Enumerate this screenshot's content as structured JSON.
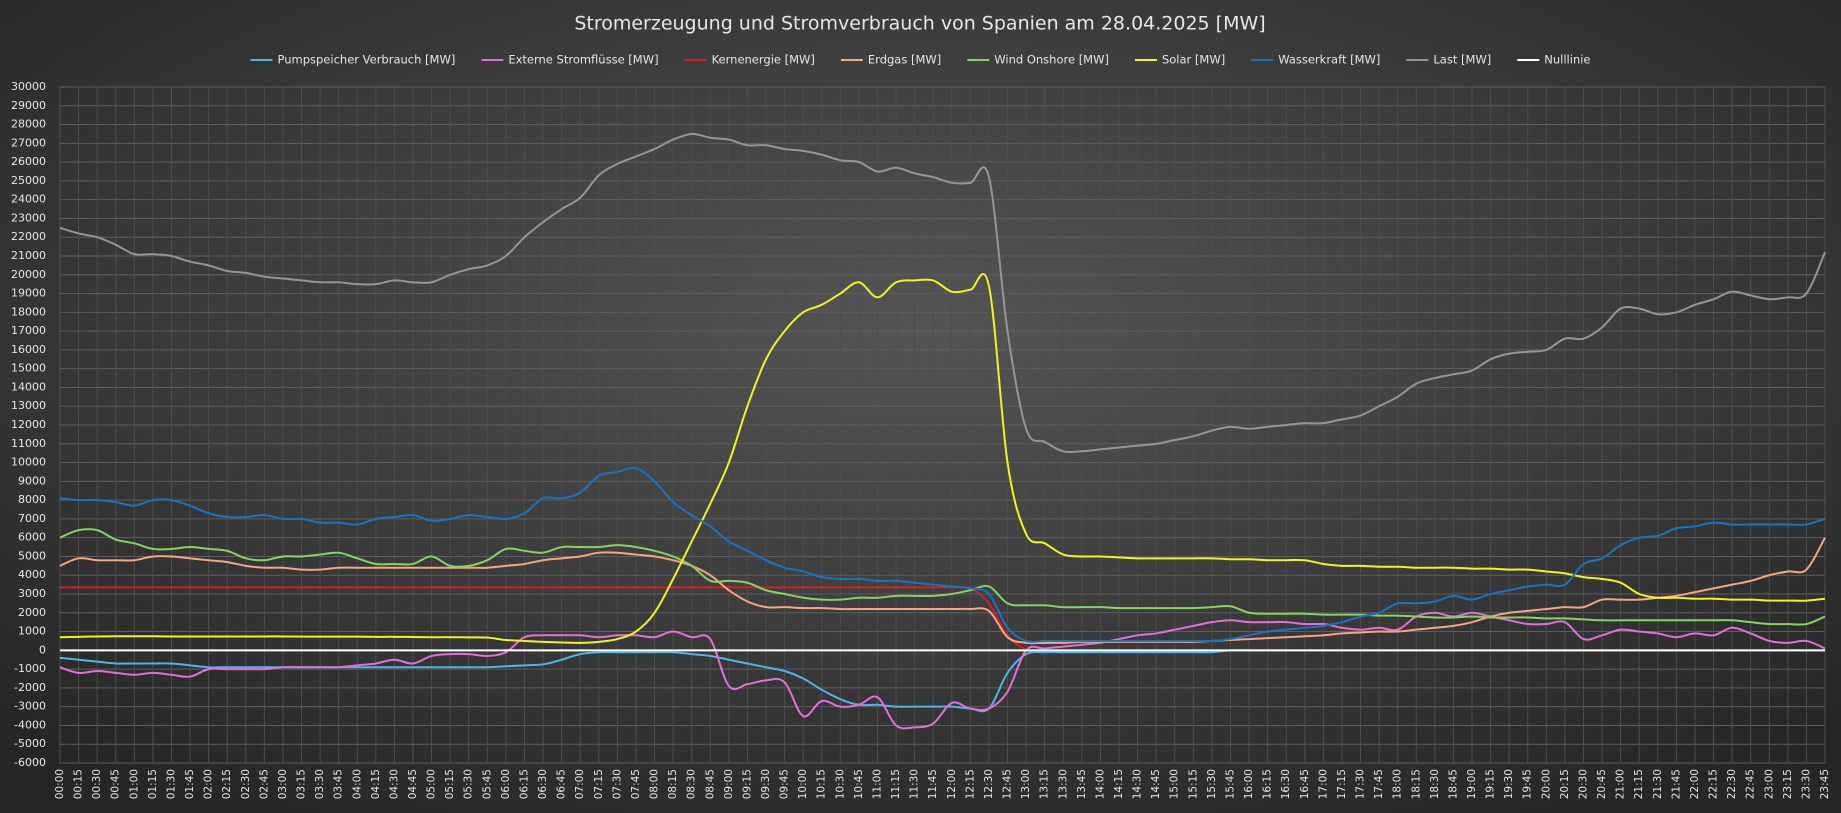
{
  "chart_data": {
    "type": "line",
    "title": "Stromerzeugung  und  Stromverbrauch  von  Spanien  am  28.04.2025  [MW]",
    "categories": [
      "00:00",
      "00:15",
      "00:30",
      "00:45",
      "01:00",
      "01:15",
      "01:30",
      "01:45",
      "02:00",
      "02:15",
      "02:30",
      "02:45",
      "03:00",
      "03:15",
      "03:30",
      "03:45",
      "04:00",
      "04:15",
      "04:30",
      "04:45",
      "05:00",
      "05:15",
      "05:30",
      "05:45",
      "06:00",
      "06:15",
      "06:30",
      "06:45",
      "07:00",
      "07:15",
      "07:30",
      "07:45",
      "08:00",
      "08:15",
      "08:30",
      "08:45",
      "09:00",
      "09:15",
      "09:30",
      "09:45",
      "10:00",
      "10:15",
      "10:30",
      "10:45",
      "11:00",
      "11:15",
      "11:30",
      "11:45",
      "12:00",
      "12:15",
      "12:30",
      "12:45",
      "13:00",
      "13:15",
      "13:30",
      "13:45",
      "14:00",
      "14:15",
      "14:30",
      "14:45",
      "15:00",
      "15:15",
      "15:30",
      "15:45",
      "16:00",
      "16:15",
      "16:30",
      "16:45",
      "17:00",
      "17:15",
      "17:30",
      "17:45",
      "18:00",
      "18:15",
      "18:30",
      "18:45",
      "19:00",
      "19:15",
      "19:30",
      "19:45",
      "20:00",
      "20:15",
      "20:30",
      "20:45",
      "21:00",
      "21:15",
      "21:30",
      "21:45",
      "22:00",
      "22:15",
      "22:30",
      "22:45",
      "23:00",
      "23:15",
      "23:30",
      "23:45"
    ],
    "ylim": [
      -6000,
      30000
    ],
    "yticks": [
      -6000,
      -5000,
      -4000,
      -3000,
      -2000,
      -1000,
      0,
      1000,
      2000,
      3000,
      4000,
      5000,
      6000,
      7000,
      8000,
      9000,
      10000,
      11000,
      12000,
      13000,
      14000,
      15000,
      16000,
      17000,
      18000,
      19000,
      20000,
      21000,
      22000,
      23000,
      24000,
      25000,
      26000,
      27000,
      28000,
      29000,
      30000
    ],
    "grid": true,
    "legend": "top",
    "series": [
      {
        "name": "Pumpspeicher Verbrauch [MW]",
        "color": "#4fb3e8",
        "values": [
          -400,
          -500,
          -600,
          -700,
          -700,
          -700,
          -700,
          -800,
          -900,
          -900,
          -900,
          -900,
          -900,
          -900,
          -900,
          -900,
          -900,
          -900,
          -900,
          -900,
          -900,
          -900,
          -900,
          -900,
          -850,
          -800,
          -750,
          -500,
          -200,
          -100,
          -100,
          -100,
          -100,
          -100,
          -200,
          -300,
          -500,
          -700,
          -900,
          -1100,
          -1500,
          -2100,
          -2600,
          -2900,
          -2900,
          -3000,
          -3000,
          -3000,
          -3000,
          -3100,
          -3100,
          -1200,
          -200,
          -100,
          -100,
          -100,
          -100,
          -100,
          -100,
          -100,
          -100,
          -100,
          -100,
          0,
          0,
          0,
          0,
          0,
          0,
          0,
          0,
          0,
          0,
          0,
          0,
          0,
          0,
          0,
          0,
          0,
          0,
          0,
          0,
          0,
          0,
          0,
          0,
          0,
          0,
          0,
          0,
          0,
          0,
          0,
          0,
          0
        ]
      },
      {
        "name": "Externe Stromflüsse [MW]",
        "color": "#e070d8",
        "values": [
          -900,
          -1200,
          -1100,
          -1200,
          -1300,
          -1200,
          -1300,
          -1400,
          -1000,
          -1000,
          -1000,
          -1000,
          -900,
          -900,
          -900,
          -900,
          -800,
          -700,
          -500,
          -700,
          -300,
          -200,
          -200,
          -300,
          -100,
          700,
          800,
          800,
          800,
          700,
          800,
          800,
          700,
          1000,
          700,
          600,
          -1900,
          -1800,
          -1600,
          -1700,
          -3500,
          -2700,
          -3000,
          -2900,
          -2500,
          -4000,
          -4100,
          -3900,
          -2800,
          -3100,
          -3100,
          -2200,
          0,
          100,
          200,
          300,
          400,
          600,
          800,
          900,
          1100,
          1300,
          1500,
          1600,
          1500,
          1500,
          1500,
          1400,
          1400,
          1200,
          1100,
          1200,
          1100,
          1800,
          2000,
          1800,
          2000,
          1800,
          1600,
          1400,
          1400,
          1500,
          600,
          800,
          1100,
          1000,
          900,
          700,
          900,
          800,
          1200,
          900,
          500,
          400,
          500,
          100
        ]
      },
      {
        "name": "Kernenergie [MW]",
        "color": "#d42020",
        "values": [
          3350,
          3350,
          3350,
          3350,
          3350,
          3350,
          3350,
          3350,
          3350,
          3350,
          3350,
          3350,
          3350,
          3350,
          3350,
          3350,
          3350,
          3350,
          3350,
          3350,
          3350,
          3350,
          3350,
          3350,
          3350,
          3350,
          3350,
          3350,
          3350,
          3350,
          3350,
          3350,
          3350,
          3350,
          3350,
          3350,
          3350,
          3350,
          3350,
          3350,
          3350,
          3350,
          3350,
          3350,
          3350,
          3350,
          3350,
          3350,
          3350,
          3300,
          2500,
          800,
          50,
          0,
          0,
          0,
          0,
          0,
          0,
          0,
          0,
          0,
          0,
          0,
          0,
          0,
          0,
          0,
          0,
          0,
          0,
          0,
          0,
          0,
          0,
          0,
          0,
          0,
          0,
          0,
          0,
          0,
          0,
          0,
          0,
          0,
          0,
          0,
          0,
          0,
          0,
          0,
          0,
          0,
          0,
          0
        ]
      },
      {
        "name": "Erdgas [MW]",
        "color": "#f4a582",
        "values": [
          4500,
          4900,
          4800,
          4800,
          4800,
          5000,
          5000,
          4900,
          4800,
          4700,
          4500,
          4400,
          4400,
          4300,
          4300,
          4400,
          4400,
          4400,
          4400,
          4400,
          4400,
          4400,
          4400,
          4400,
          4500,
          4600,
          4800,
          4900,
          5000,
          5200,
          5200,
          5100,
          5000,
          4800,
          4500,
          4000,
          3200,
          2600,
          2300,
          2300,
          2250,
          2250,
          2200,
          2200,
          2200,
          2200,
          2200,
          2200,
          2200,
          2200,
          2100,
          700,
          400,
          400,
          400,
          450,
          450,
          450,
          450,
          450,
          450,
          450,
          500,
          550,
          600,
          650,
          700,
          750,
          800,
          900,
          950,
          1000,
          1000,
          1100,
          1200,
          1300,
          1500,
          1800,
          2000,
          2100,
          2200,
          2300,
          2300,
          2700,
          2700,
          2700,
          2800,
          2900,
          3100,
          3300,
          3500,
          3700,
          4000,
          4200,
          4300,
          6000
        ]
      },
      {
        "name": "Wind Onshore [MW]",
        "color": "#86d264",
        "values": [
          6000,
          6400,
          6400,
          5900,
          5700,
          5400,
          5400,
          5500,
          5400,
          5300,
          4900,
          4800,
          5000,
          5000,
          5100,
          5200,
          4900,
          4600,
          4600,
          4600,
          5000,
          4500,
          4500,
          4800,
          5400,
          5300,
          5200,
          5500,
          5500,
          5500,
          5600,
          5500,
          5300,
          5000,
          4500,
          3700,
          3700,
          3600,
          3200,
          3000,
          2800,
          2700,
          2700,
          2800,
          2800,
          2900,
          2900,
          2900,
          3000,
          3200,
          3400,
          2500,
          2400,
          2400,
          2300,
          2300,
          2300,
          2250,
          2250,
          2250,
          2250,
          2250,
          2300,
          2350,
          2000,
          1950,
          1950,
          1950,
          1900,
          1900,
          1900,
          1850,
          1850,
          1800,
          1750,
          1750,
          1800,
          1750,
          1750,
          1750,
          1700,
          1700,
          1650,
          1600,
          1600,
          1600,
          1600,
          1600,
          1600,
          1600,
          1600,
          1500,
          1400,
          1400,
          1400,
          1800
        ]
      },
      {
        "name": "Solar [MW]",
        "color": "#f2f21e",
        "values": [
          700,
          720,
          740,
          750,
          750,
          750,
          740,
          740,
          740,
          740,
          740,
          740,
          740,
          730,
          730,
          730,
          730,
          720,
          720,
          710,
          700,
          700,
          690,
          680,
          550,
          500,
          450,
          420,
          400,
          450,
          600,
          1000,
          2000,
          3800,
          5800,
          7800,
          10000,
          13000,
          15500,
          17000,
          18000,
          18400,
          19000,
          19600,
          18800,
          19600,
          19700,
          19700,
          19100,
          19200,
          19400,
          10000,
          6200,
          5700,
          5100,
          5000,
          5000,
          4950,
          4900,
          4900,
          4900,
          4900,
          4900,
          4850,
          4850,
          4800,
          4800,
          4800,
          4600,
          4500,
          4500,
          4450,
          4450,
          4400,
          4400,
          4400,
          4350,
          4350,
          4300,
          4300,
          4200,
          4100,
          3900,
          3800,
          3600,
          3000,
          2800,
          2800,
          2750,
          2750,
          2700,
          2700,
          2650,
          2650,
          2650,
          2750
        ]
      },
      {
        "name": "Wasserkraft [MW]",
        "color": "#1a72c4",
        "values": [
          8100,
          8000,
          8000,
          7900,
          7700,
          8000,
          8000,
          7700,
          7300,
          7100,
          7100,
          7200,
          7000,
          7000,
          6800,
          6800,
          6700,
          7000,
          7100,
          7200,
          6900,
          7000,
          7200,
          7100,
          7000,
          7300,
          8100,
          8100,
          8400,
          9300,
          9500,
          9700,
          9000,
          7900,
          7200,
          6600,
          5800,
          5300,
          4800,
          4400,
          4200,
          3900,
          3800,
          3800,
          3700,
          3700,
          3600,
          3500,
          3400,
          3300,
          3000,
          1200,
          500,
          500,
          500,
          500,
          500,
          500,
          500,
          500,
          500,
          500,
          500,
          600,
          800,
          1000,
          1100,
          1200,
          1300,
          1500,
          1800,
          2000,
          2500,
          2500,
          2600,
          2900,
          2700,
          3000,
          3200,
          3400,
          3500,
          3500,
          4600,
          4900,
          5600,
          6000,
          6100,
          6500,
          6600,
          6800,
          6700,
          6700,
          6700,
          6700,
          6700,
          7000
        ]
      },
      {
        "name": "Last [MW]",
        "color": "#959595",
        "values": [
          22500,
          22200,
          22000,
          21600,
          21100,
          21100,
          21000,
          20700,
          20500,
          20200,
          20100,
          19900,
          19800,
          19700,
          19600,
          19600,
          19500,
          19500,
          19700,
          19600,
          19600,
          20000,
          20300,
          20500,
          21000,
          22000,
          22800,
          23500,
          24100,
          25300,
          25900,
          26300,
          26700,
          27200,
          27500,
          27300,
          27200,
          26900,
          26900,
          26700,
          26600,
          26400,
          26100,
          26000,
          25500,
          25700,
          25400,
          25200,
          24900,
          24900,
          25200,
          17000,
          11800,
          11100,
          10600,
          10600,
          10700,
          10800,
          10900,
          11000,
          11200,
          11400,
          11700,
          11900,
          11800,
          11900,
          12000,
          12100,
          12100,
          12300,
          12500,
          13000,
          13500,
          14200,
          14500,
          14700,
          14900,
          15500,
          15800,
          15900,
          16000,
          16600,
          16600,
          17200,
          18200,
          18200,
          17900,
          18000,
          18400,
          18700,
          19100,
          18900,
          18700,
          18800,
          19000,
          21200
        ]
      },
      {
        "name": "Nulllinie",
        "color": "#ffffff",
        "values": [
          0,
          0,
          0,
          0,
          0,
          0,
          0,
          0,
          0,
          0,
          0,
          0,
          0,
          0,
          0,
          0,
          0,
          0,
          0,
          0,
          0,
          0,
          0,
          0,
          0,
          0,
          0,
          0,
          0,
          0,
          0,
          0,
          0,
          0,
          0,
          0,
          0,
          0,
          0,
          0,
          0,
          0,
          0,
          0,
          0,
          0,
          0,
          0,
          0,
          0,
          0,
          0,
          0,
          0,
          0,
          0,
          0,
          0,
          0,
          0,
          0,
          0,
          0,
          0,
          0,
          0,
          0,
          0,
          0,
          0,
          0,
          0,
          0,
          0,
          0,
          0,
          0,
          0,
          0,
          0,
          0,
          0,
          0,
          0,
          0,
          0,
          0,
          0,
          0,
          0,
          0,
          0,
          0,
          0,
          0,
          0
        ]
      }
    ]
  }
}
